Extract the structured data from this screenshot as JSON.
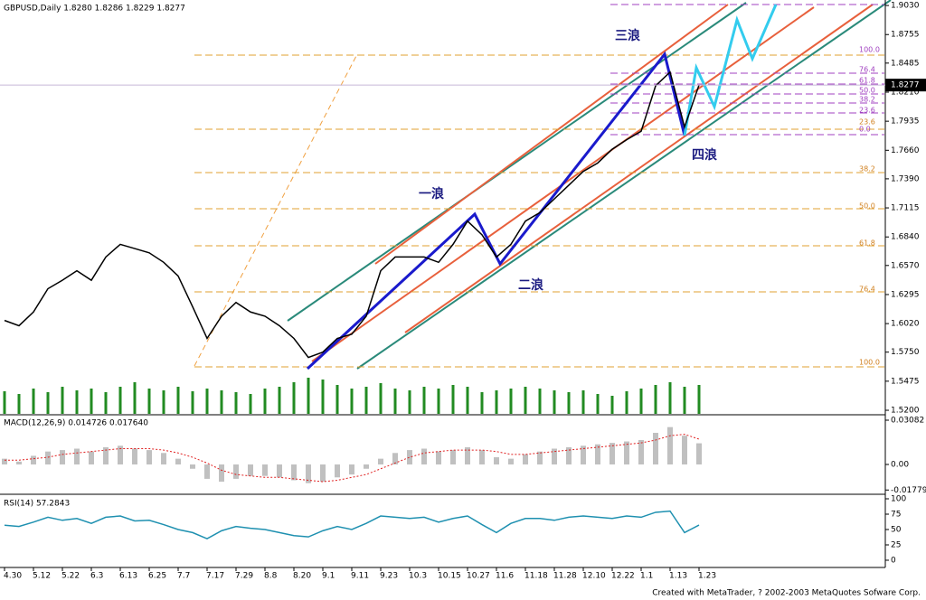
{
  "chart_data": [
    {
      "type": "line",
      "title": "GBPUSD,Daily  1.8280 1.8286 1.8229 1.8277",
      "categories": [
        "4.30",
        null,
        "5.12",
        null,
        "5.22",
        null,
        "6.3",
        null,
        "6.13",
        null,
        "6.25",
        null,
        "7.7",
        null,
        "7.17",
        null,
        "7.29",
        null,
        "8.8",
        null,
        "8.20",
        null,
        "9.1",
        null,
        "9.11",
        null,
        "9.23",
        null,
        "10.3",
        null,
        "10.15",
        null,
        "10.27",
        null,
        "11.6",
        null,
        "11.18",
        null,
        "11.28",
        null,
        "12.10",
        null,
        "12.22",
        null,
        "1.1",
        null,
        "1.13",
        null,
        "1.23"
      ],
      "values": [
        1.605,
        1.6,
        1.613,
        1.635,
        1.643,
        1.652,
        1.643,
        1.665,
        1.677,
        1.673,
        1.669,
        1.66,
        1.647,
        1.618,
        1.588,
        1.609,
        1.622,
        1.613,
        1.609,
        1.6,
        1.588,
        1.57,
        1.575,
        1.588,
        1.592,
        1.609,
        1.652,
        1.665,
        1.665,
        1.665,
        1.66,
        1.677,
        1.699,
        1.686,
        1.665,
        1.677,
        1.699,
        1.707,
        1.72,
        1.733,
        1.746,
        1.754,
        1.767,
        1.776,
        1.784,
        1.827,
        1.84,
        1.788,
        1.8277
      ],
      "volume": [
        25,
        22,
        28,
        24,
        30,
        26,
        28,
        24,
        30,
        35,
        28,
        26,
        30,
        25,
        28,
        26,
        24,
        22,
        28,
        30,
        35,
        40,
        38,
        32,
        28,
        30,
        34,
        28,
        26,
        30,
        28,
        32,
        30,
        24,
        26,
        28,
        30,
        28,
        26,
        24,
        26,
        22,
        20,
        25,
        28,
        32,
        35,
        30,
        32
      ],
      "color": "#000000",
      "volume_color": "#228b22",
      "ylim": [
        1.5166,
        1.9082
      ],
      "yticks": [
        {
          "value": 1.903,
          "label": "1.9030"
        },
        {
          "value": 1.8755,
          "label": "1.8755"
        },
        {
          "value": 1.8485,
          "label": "1.8485"
        },
        {
          "value": 1.821,
          "label": "1.8210"
        },
        {
          "value": 1.7935,
          "label": "1.7935"
        },
        {
          "value": 1.766,
          "label": "1.7660"
        },
        {
          "value": 1.739,
          "label": "1.7390"
        },
        {
          "value": 1.7115,
          "label": "1.7115"
        },
        {
          "value": 1.684,
          "label": "1.6840"
        },
        {
          "value": 1.657,
          "label": "1.6570"
        },
        {
          "value": 1.6295,
          "label": "1.6295"
        },
        {
          "value": 1.602,
          "label": "1.6020"
        },
        {
          "value": 1.575,
          "label": "1.5750"
        },
        {
          "value": 1.5475,
          "label": "1.5475"
        },
        {
          "value": 1.52,
          "label": "1.5200"
        }
      ],
      "last_price": {
        "value": 1.8277,
        "label": "1.8277"
      },
      "annotations": [
        "一浪",
        "二浪",
        "三浪",
        "四浪"
      ],
      "fib_labels": [
        "100.0",
        "76.4",
        "61.8",
        "50.0",
        "38.2",
        "23.6",
        "100.0",
        "76.4",
        "61.8",
        "50.0",
        "38.2",
        "23.6",
        "0.0"
      ]
    },
    {
      "type": "macd",
      "title": "MACD(12,26,9) 0.014726 0.017640",
      "values": [
        0.004,
        0.002,
        0.006,
        0.009,
        0.01,
        0.011,
        0.009,
        0.012,
        0.013,
        0.011,
        0.01,
        0.008,
        0.004,
        -0.003,
        -0.01,
        -0.012,
        -0.01,
        -0.008,
        -0.008,
        -0.009,
        -0.011,
        -0.013,
        -0.012,
        -0.009,
        -0.007,
        -0.003,
        0.004,
        0.008,
        0.01,
        0.011,
        0.009,
        0.01,
        0.012,
        0.01,
        0.005,
        0.004,
        0.007,
        0.009,
        0.011,
        0.012,
        0.013,
        0.014,
        0.015,
        0.016,
        0.017,
        0.022,
        0.026,
        0.02,
        0.014726
      ],
      "signal": [
        0.003,
        0.003,
        0.004,
        0.005,
        0.007,
        0.008,
        0.009,
        0.01,
        0.011,
        0.011,
        0.011,
        0.01,
        0.008,
        0.005,
        0.001,
        -0.004,
        -0.007,
        -0.008,
        -0.009,
        -0.009,
        -0.01,
        -0.011,
        -0.012,
        -0.011,
        -0.009,
        -0.007,
        -0.003,
        0.001,
        0.005,
        0.008,
        0.009,
        0.01,
        0.01,
        0.01,
        0.009,
        0.007,
        0.007,
        0.008,
        0.009,
        0.01,
        0.011,
        0.012,
        0.013,
        0.014,
        0.015,
        0.017,
        0.02,
        0.021,
        0.01764
      ],
      "color": "#c0c0c0",
      "signal_color": "#e02020",
      "ylim": [
        -0.02013,
        0.03396
      ],
      "yticks": [
        0.03082,
        {
          "value": 0,
          "label": "0.00"
        },
        -0.01779
      ]
    },
    {
      "type": "line",
      "title": "RSI(14) 57.2843",
      "values": [
        57,
        55,
        62,
        70,
        65,
        68,
        60,
        70,
        72,
        64,
        65,
        58,
        50,
        45,
        35,
        48,
        55,
        52,
        50,
        45,
        40,
        38,
        48,
        55,
        50,
        60,
        72,
        70,
        68,
        70,
        62,
        68,
        72,
        58,
        45,
        60,
        68,
        68,
        65,
        70,
        72,
        70,
        68,
        72,
        70,
        78,
        80,
        45,
        57.2843
      ],
      "color": "#1e90b0",
      "ylim": [
        -11.8,
        105.9
      ],
      "yticks": [
        100,
        75,
        50,
        25,
        0
      ]
    }
  ],
  "footer": "Created with MetaTrader, ? 2002-2003 MetaQuotes Sofware Corp."
}
